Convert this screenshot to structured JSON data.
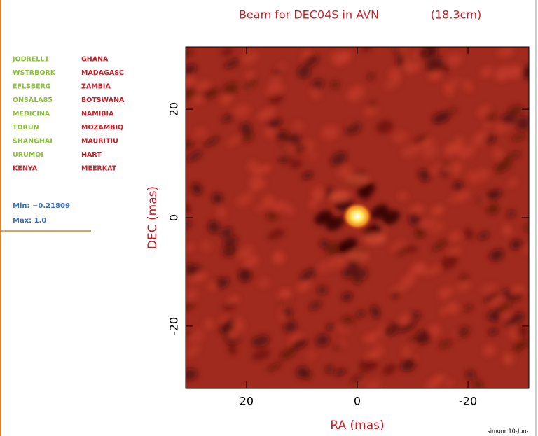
{
  "chart_data": {
    "type": "image",
    "title": "Beam for DEC04S in AVN",
    "subtitle": "(18.3cm)",
    "x_label": "RA (mas)",
    "y_label": "DEC (mas)",
    "xlim": [
      31,
      -31
    ],
    "ylim": [
      -31.5,
      31.5
    ],
    "xticks": [
      20,
      0,
      -20
    ],
    "yticks": [
      -20,
      0,
      20
    ],
    "stations": [
      {
        "name": "JODRELL1",
        "color": "#8cbf3a"
      },
      {
        "name": "WSTRBORK",
        "color": "#8cbf3a"
      },
      {
        "name": "EFLSBERG",
        "color": "#8cbf3a"
      },
      {
        "name": "ONSALA85",
        "color": "#8cbf3a"
      },
      {
        "name": "MEDICINA",
        "color": "#8cbf3a"
      },
      {
        "name": "TORUN",
        "color": "#8cbf3a"
      },
      {
        "name": "SHANGHAI",
        "color": "#8cbf3a"
      },
      {
        "name": "URUMQI",
        "color": "#8cbf3a"
      },
      {
        "name": "KENYA",
        "color": "#c8202a"
      },
      {
        "name": "GHANA",
        "color": "#c8202a"
      },
      {
        "name": "MADAGASC",
        "color": "#c8202a"
      },
      {
        "name": "ZAMBIA",
        "color": "#c8202a"
      },
      {
        "name": "BOTSWANA",
        "color": "#c8202a"
      },
      {
        "name": "NAMIBIA",
        "color": "#c8202a"
      },
      {
        "name": "MOZAMBIQ",
        "color": "#c8202a"
      },
      {
        "name": "MAURITIU",
        "color": "#c8202a"
      },
      {
        "name": "HART",
        "color": "#c8202a"
      },
      {
        "name": "MEERKAT",
        "color": "#c8202a"
      }
    ],
    "min_label": "Min: −0.21809",
    "max_label": "Max: 1.0",
    "footer": "simonr 10-Jun-"
  }
}
